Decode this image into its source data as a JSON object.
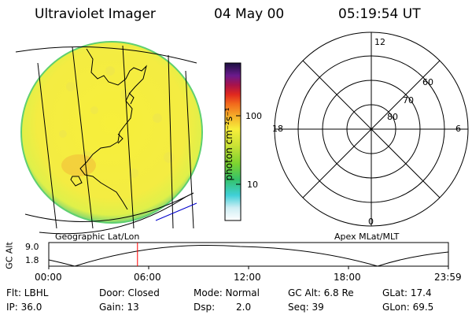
{
  "header": {
    "instrument": "Ultraviolet Imager",
    "date": "04 May 00",
    "time": "05:19:54 UT"
  },
  "colorbar": {
    "label": "photon cm⁻²s⁻¹",
    "ticks": [
      "100",
      "10"
    ]
  },
  "polar": {
    "labels": {
      "top": "12",
      "left": "18",
      "right": "6",
      "bottom": "0"
    },
    "rings": [
      "60",
      "70",
      "80"
    ]
  },
  "panels": {
    "left_caption": "Geographic Lat/Lon",
    "right_caption": "Apex MLat/MLT"
  },
  "alt_plot": {
    "ylabel": "GC Alt",
    "yticks": [
      "9.0",
      "1.8"
    ],
    "xticks": [
      "00:00",
      "06:00",
      "12:00",
      "18:00",
      "23:59"
    ],
    "current_time_fraction": 0.222
  },
  "info": {
    "row1": {
      "flt": "Flt: LBHL",
      "door": "Door: Closed",
      "mode": "Mode: Normal",
      "gcalt": "GC Alt: 6.8 Re",
      "glat": "GLat: 17.4"
    },
    "row2": {
      "ip": "IP: 36.0",
      "gain": "Gain: 13",
      "dsp": "Dsp:",
      "dsp_val": "2.0",
      "seq": "Seq: 39",
      "glon": "GLon: 69.5"
    }
  },
  "colors": {
    "disk_fill": "#f2ec3e",
    "disk_edge": "#6fd36a",
    "marker": "#ff0000",
    "grid": "#000000"
  }
}
